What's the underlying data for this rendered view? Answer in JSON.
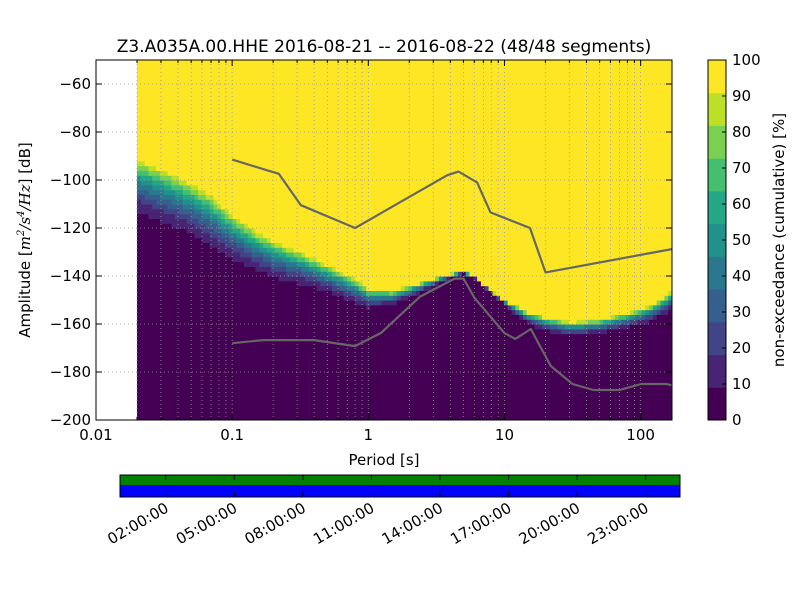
{
  "chart_data": {
    "type": "heatmap",
    "title": "Z3.A035A.00.HHE   2016-08-21 -- 2016-08-22  (48/48 segments)",
    "xlabel": "Period [s]",
    "ylabel_prefix": "Amplitude [",
    "ylabel_units": "m",
    "ylabel_sup1": "2",
    "ylabel_mid": "/s",
    "ylabel_sup2": "4",
    "ylabel_tail": "/Hz",
    "ylabel_suffix": "] [dB]",
    "x_scale": "log",
    "xlim": [
      0.01,
      170
    ],
    "ylim": [
      -200,
      -50
    ],
    "x_ticks": [
      {
        "value": 0.01,
        "label": "0.01"
      },
      {
        "value": 0.1,
        "label": "0.1"
      },
      {
        "value": 1,
        "label": "1"
      },
      {
        "value": 10,
        "label": "10"
      },
      {
        "value": 100,
        "label": "100"
      }
    ],
    "y_ticks": [
      {
        "value": -60,
        "label": "−60"
      },
      {
        "value": -80,
        "label": "−80"
      },
      {
        "value": -100,
        "label": "−100"
      },
      {
        "value": -120,
        "label": "−120"
      },
      {
        "value": -140,
        "label": "−140"
      },
      {
        "value": -160,
        "label": "−160"
      },
      {
        "value": -180,
        "label": "−180"
      },
      {
        "value": -200,
        "label": "−200"
      }
    ],
    "grid": true,
    "data_min_period": 0.02,
    "colorbar": {
      "label": "non-exceedance (cumulative) [%]",
      "ticks": [
        {
          "value": 0,
          "label": "0"
        },
        {
          "value": 10,
          "label": "10"
        },
        {
          "value": 20,
          "label": "20"
        },
        {
          "value": 30,
          "label": "30"
        },
        {
          "value": 40,
          "label": "40"
        },
        {
          "value": 50,
          "label": "50"
        },
        {
          "value": 60,
          "label": "60"
        },
        {
          "value": 70,
          "label": "70"
        },
        {
          "value": 80,
          "label": "80"
        },
        {
          "value": 90,
          "label": "90"
        },
        {
          "value": 100,
          "label": "100"
        }
      ],
      "levels": [
        "#440154",
        "#482475",
        "#414487",
        "#355f8d",
        "#2a788e",
        "#21918c",
        "#22a884",
        "#44bf70",
        "#7ad151",
        "#bddf26",
        "#fde725"
      ]
    },
    "surface": {
      "periods": [
        0.02,
        0.03,
        0.05,
        0.07,
        0.1,
        0.15,
        0.2,
        0.3,
        0.5,
        0.8,
        1.0,
        1.5,
        2.0,
        3.0,
        4.0,
        5.0,
        6.0,
        8.0,
        10,
        12,
        15,
        20,
        30,
        50,
        80,
        120,
        170
      ],
      "p0": [
        -118,
        -122,
        -127,
        -132,
        -137,
        -141,
        -144,
        -146,
        -149,
        -153,
        -155,
        -153,
        -150,
        -145,
        -141,
        -139,
        -141,
        -147,
        -152,
        -157,
        -161,
        -164,
        -166,
        -165,
        -163,
        -160,
        -156
      ],
      "p100": [
        -91,
        -95,
        -101,
        -106,
        -114,
        -121,
        -125,
        -129,
        -135,
        -141,
        -145,
        -146,
        -144,
        -141,
        -139,
        -138,
        -140,
        -146,
        -150,
        -152,
        -155,
        -157,
        -159,
        -158,
        -155,
        -152,
        -146
      ]
    },
    "noise_models": [
      {
        "x": [
          0.1,
          0.17,
          0.22,
          0.32,
          0.8,
          3.8,
          4.6,
          6.3,
          7.9,
          15.4,
          20,
          170
        ],
        "y": [
          -91.5,
          -95.5,
          -97.4,
          -110.5,
          -120,
          -98,
          -96.5,
          -101,
          -113.5,
          -120,
          -138.5,
          -128.8
        ]
      },
      {
        "x": [
          0.1,
          0.17,
          0.4,
          0.8,
          1.24,
          2.4,
          4.3,
          5.0,
          6.0,
          10,
          12,
          15.6,
          21.9,
          31.6,
          45,
          70,
          101,
          154,
          170
        ],
        "y": [
          -168,
          -166.7,
          -166.7,
          -169.2,
          -163.7,
          -148.6,
          -141.1,
          -141.1,
          -149,
          -163.8,
          -166.2,
          -162.1,
          -177.5,
          -185,
          -187.5,
          -187.5,
          -185,
          -185,
          -185.5
        ]
      }
    ],
    "noise_model_color": "#666666",
    "time_axis": {
      "tick_labels": [
        "02:00:00",
        "05:00:00",
        "08:00:00",
        "11:00:00",
        "14:00:00",
        "17:00:00",
        "20:00:00",
        "23:00:00"
      ],
      "tick_hours": [
        2,
        5,
        8,
        11,
        14,
        17,
        20,
        23
      ],
      "start_hour": 0,
      "end_hour": 24.5,
      "coverage_color": "#008000",
      "segments_color": "#0000ff"
    }
  }
}
